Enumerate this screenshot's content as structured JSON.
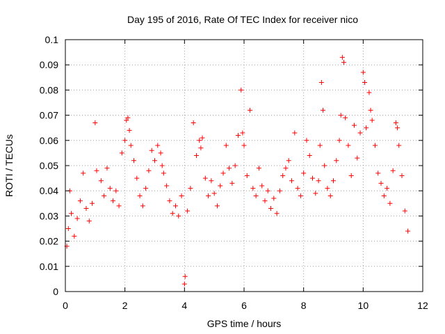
{
  "chart_data": {
    "type": "scatter",
    "title": "Day 195 of 2016, Rate Of TEC Index for receiver nico",
    "xlabel": "GPS time / hours",
    "ylabel": "ROTI / TECUs",
    "xlim": [
      0,
      12
    ],
    "ylim": [
      0,
      0.1
    ],
    "xticks": [
      0,
      2,
      4,
      6,
      8,
      10,
      12
    ],
    "yticks": [
      0,
      0.01,
      0.02,
      0.03,
      0.04,
      0.05,
      0.06,
      0.07,
      0.08,
      0.09,
      0.1
    ],
    "xtick_labels": [
      "0",
      "2",
      "4",
      "6",
      "8",
      "10",
      "12"
    ],
    "ytick_labels": [
      "0",
      "0.01",
      "0.02",
      "0.03",
      "0.04",
      "0.05",
      "0.06",
      "0.07",
      "0.08",
      "0.09",
      "0.1"
    ],
    "grid": true,
    "marker": "plus",
    "color": "#ff0000",
    "series": [
      {
        "name": "ROTI",
        "points": [
          [
            0.05,
            0.018
          ],
          [
            0.1,
            0.025
          ],
          [
            0.2,
            0.031
          ],
          [
            0.15,
            0.04
          ],
          [
            0.3,
            0.022
          ],
          [
            0.4,
            0.029
          ],
          [
            0.5,
            0.036
          ],
          [
            0.6,
            0.047
          ],
          [
            0.7,
            0.033
          ],
          [
            0.8,
            0.028
          ],
          [
            0.9,
            0.035
          ],
          [
            1.0,
            0.067
          ],
          [
            1.05,
            0.048
          ],
          [
            1.2,
            0.044
          ],
          [
            1.3,
            0.038
          ],
          [
            1.4,
            0.049
          ],
          [
            1.5,
            0.041
          ],
          [
            1.6,
            0.036
          ],
          [
            1.7,
            0.04
          ],
          [
            1.8,
            0.034
          ],
          [
            1.9,
            0.055
          ],
          [
            2.0,
            0.06
          ],
          [
            2.05,
            0.068
          ],
          [
            2.1,
            0.069
          ],
          [
            2.15,
            0.064
          ],
          [
            2.2,
            0.058
          ],
          [
            2.3,
            0.052
          ],
          [
            2.4,
            0.045
          ],
          [
            2.5,
            0.038
          ],
          [
            2.6,
            0.034
          ],
          [
            2.7,
            0.041
          ],
          [
            2.8,
            0.048
          ],
          [
            2.9,
            0.056
          ],
          [
            3.0,
            0.052
          ],
          [
            3.1,
            0.058
          ],
          [
            3.2,
            0.055
          ],
          [
            3.25,
            0.05
          ],
          [
            3.3,
            0.047
          ],
          [
            3.4,
            0.042
          ],
          [
            3.5,
            0.036
          ],
          [
            3.6,
            0.031
          ],
          [
            3.7,
            0.034
          ],
          [
            3.8,
            0.03
          ],
          [
            3.9,
            0.038
          ],
          [
            4.0,
            0.003
          ],
          [
            4.02,
            0.006
          ],
          [
            4.1,
            0.032
          ],
          [
            4.2,
            0.041
          ],
          [
            4.3,
            0.067
          ],
          [
            4.4,
            0.054
          ],
          [
            4.5,
            0.06
          ],
          [
            4.55,
            0.057
          ],
          [
            4.6,
            0.061
          ],
          [
            4.7,
            0.045
          ],
          [
            4.8,
            0.038
          ],
          [
            4.9,
            0.044
          ],
          [
            5.0,
            0.039
          ],
          [
            5.1,
            0.034
          ],
          [
            5.2,
            0.042
          ],
          [
            5.3,
            0.047
          ],
          [
            5.4,
            0.058
          ],
          [
            5.5,
            0.049
          ],
          [
            5.6,
            0.043
          ],
          [
            5.7,
            0.05
          ],
          [
            5.8,
            0.062
          ],
          [
            5.9,
            0.08
          ],
          [
            5.95,
            0.063
          ],
          [
            6.0,
            0.058
          ],
          [
            6.1,
            0.046
          ],
          [
            6.2,
            0.072
          ],
          [
            6.3,
            0.041
          ],
          [
            6.4,
            0.038
          ],
          [
            6.5,
            0.049
          ],
          [
            6.6,
            0.042
          ],
          [
            6.7,
            0.036
          ],
          [
            6.8,
            0.04
          ],
          [
            6.9,
            0.033
          ],
          [
            7.0,
            0.037
          ],
          [
            7.1,
            0.031
          ],
          [
            7.2,
            0.04
          ],
          [
            7.3,
            0.046
          ],
          [
            7.4,
            0.049
          ],
          [
            7.5,
            0.052
          ],
          [
            7.6,
            0.044
          ],
          [
            7.7,
            0.063
          ],
          [
            7.8,
            0.041
          ],
          [
            7.9,
            0.038
          ],
          [
            8.0,
            0.047
          ],
          [
            8.1,
            0.06
          ],
          [
            8.2,
            0.054
          ],
          [
            8.3,
            0.045
          ],
          [
            8.4,
            0.039
          ],
          [
            8.5,
            0.044
          ],
          [
            8.55,
            0.058
          ],
          [
            8.6,
            0.083
          ],
          [
            8.65,
            0.072
          ],
          [
            8.7,
            0.05
          ],
          [
            8.8,
            0.041
          ],
          [
            8.9,
            0.038
          ],
          [
            9.0,
            0.044
          ],
          [
            9.1,
            0.052
          ],
          [
            9.2,
            0.06
          ],
          [
            9.25,
            0.07
          ],
          [
            9.3,
            0.093
          ],
          [
            9.35,
            0.091
          ],
          [
            9.4,
            0.069
          ],
          [
            9.5,
            0.058
          ],
          [
            9.6,
            0.046
          ],
          [
            9.7,
            0.066
          ],
          [
            9.8,
            0.053
          ],
          [
            9.9,
            0.063
          ],
          [
            10.0,
            0.087
          ],
          [
            10.05,
            0.083
          ],
          [
            10.1,
            0.065
          ],
          [
            10.2,
            0.079
          ],
          [
            10.25,
            0.072
          ],
          [
            10.3,
            0.068
          ],
          [
            10.4,
            0.058
          ],
          [
            10.5,
            0.047
          ],
          [
            10.6,
            0.043
          ],
          [
            10.7,
            0.038
          ],
          [
            10.8,
            0.041
          ],
          [
            10.9,
            0.035
          ],
          [
            11.0,
            0.048
          ],
          [
            11.1,
            0.067
          ],
          [
            11.15,
            0.065
          ],
          [
            11.2,
            0.058
          ],
          [
            11.3,
            0.046
          ],
          [
            11.4,
            0.032
          ],
          [
            11.5,
            0.024
          ]
        ]
      }
    ]
  }
}
